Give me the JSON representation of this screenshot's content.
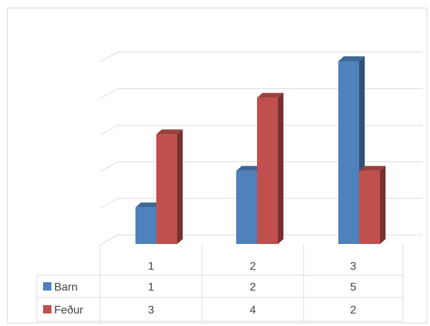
{
  "chart_data": {
    "type": "bar",
    "categories": [
      "1",
      "2",
      "3"
    ],
    "series": [
      {
        "name": "Barn",
        "values": [
          1,
          2,
          5
        ],
        "color": "#4f81bd"
      },
      {
        "name": "Feður",
        "values": [
          3,
          4,
          2
        ],
        "color": "#c0504d"
      }
    ],
    "ylim": [
      0,
      5
    ],
    "grid": true,
    "legend": "data-table",
    "style": "3d-clustered-column"
  }
}
